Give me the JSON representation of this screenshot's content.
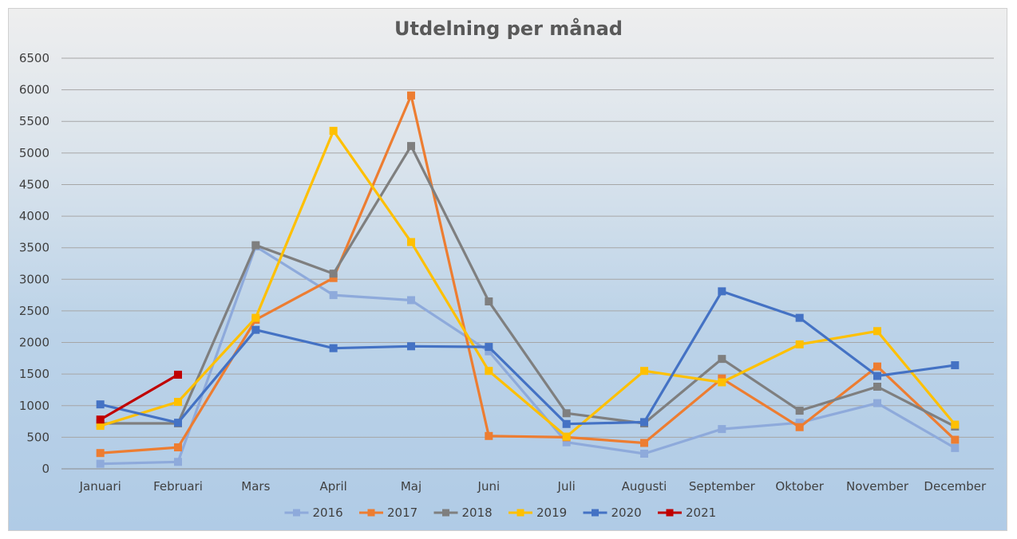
{
  "chart_data": {
    "type": "line",
    "title": "Utdelning per månad",
    "xlabel": "",
    "ylabel": "",
    "ylim": [
      0,
      6500
    ],
    "ytick_step": 500,
    "grid": true,
    "legend_position": "bottom",
    "categories": [
      "Januari",
      "Februari",
      "Mars",
      "April",
      "Maj",
      "Juni",
      "Juli",
      "Augusti",
      "September",
      "Oktober",
      "November",
      "December"
    ],
    "series": [
      {
        "name": "2016",
        "color": "#8eaadb",
        "values": [
          80,
          110,
          3520,
          2750,
          2670,
          1860,
          420,
          240,
          630,
          730,
          1040,
          330
        ]
      },
      {
        "name": "2017",
        "color": "#ed7d31",
        "values": [
          250,
          340,
          2360,
          3020,
          5910,
          520,
          500,
          410,
          1430,
          660,
          1620,
          460
        ]
      },
      {
        "name": "2018",
        "color": "#7f7f7f",
        "values": [
          720,
          720,
          3540,
          3090,
          5110,
          2650,
          880,
          720,
          1740,
          920,
          1300,
          670
        ]
      },
      {
        "name": "2019",
        "color": "#ffc000",
        "values": [
          680,
          1060,
          2390,
          5350,
          3590,
          1550,
          510,
          1550,
          1370,
          1970,
          2180,
          700
        ]
      },
      {
        "name": "2020",
        "color": "#4472c4",
        "values": [
          1020,
          730,
          2200,
          1910,
          1940,
          1930,
          710,
          740,
          2810,
          2390,
          1470,
          1640
        ]
      },
      {
        "name": "2021",
        "color": "#c00000",
        "values": [
          780,
          1490,
          null,
          null,
          null,
          null,
          null,
          null,
          null,
          null,
          null,
          null
        ]
      }
    ]
  }
}
